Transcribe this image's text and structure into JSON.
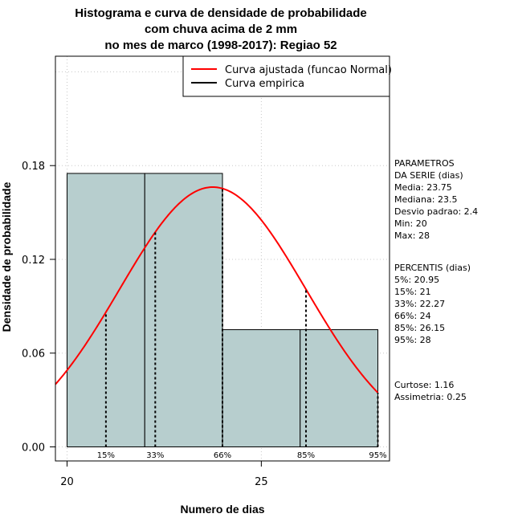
{
  "chart_data": {
    "type": "bar",
    "title_lines": [
      "Histograma e curva de densidade de probabilidade",
      "com chuva acima de 2 mm",
      "no mes de marco (1998-2017): Regiao 52"
    ],
    "xlabel": "Numero de dias",
    "ylabel": "Densidade de probabilidade",
    "xlim": [
      19.7,
      28.3
    ],
    "ylim": [
      -0.009,
      0.25
    ],
    "x_ticks": [
      20,
      25
    ],
    "y_ticks": [
      0.0,
      0.06,
      0.12,
      0.18
    ],
    "y_tick_labels": [
      "0.00",
      "0.06",
      "0.12",
      "0.18"
    ],
    "grid_x": [
      20,
      25
    ],
    "grid_y": [
      0.0,
      0.06,
      0.12,
      0.18,
      0.24
    ],
    "histogram": {
      "bins": [
        [
          20,
          22
        ],
        [
          22,
          24
        ],
        [
          24,
          26
        ],
        [
          26,
          28
        ]
      ],
      "values": [
        0.175,
        0.175,
        0.075,
        0.075
      ],
      "fill": "#b7cece",
      "stroke": "#000000"
    },
    "normal_fit": {
      "mean": 23.75,
      "sd": 2.4,
      "color": "#ff0000"
    },
    "percentiles": [
      {
        "label": "15%",
        "x": 21
      },
      {
        "label": "33%",
        "x": 22.27
      },
      {
        "label": "66%",
        "x": 24
      },
      {
        "label": "85%",
        "x": 26.15
      },
      {
        "label": "95%",
        "x": 28
      }
    ],
    "legend": {
      "placement": "top-right",
      "entries": [
        {
          "name": "Curva ajustada (funcao Normal)",
          "color": "#ff0000"
        },
        {
          "name": "Curva empirica",
          "color": "#000000"
        }
      ]
    }
  },
  "side_panel": {
    "params_lines": [
      "PARAMETROS",
      "DA SERIE (dias)",
      "  Media: 23.75",
      "  Mediana: 23.5",
      "  Desvio padrao: 2.4",
      "  Min: 20",
      "  Max: 28"
    ],
    "percentis_lines": [
      "PERCENTIS (dias)",
      "   5%: 20.95",
      "  15%: 21",
      "  33%: 22.27",
      "  66%: 24",
      "  85%: 26.15",
      "  95%: 28"
    ],
    "stats_lines": [
      "    Curtose: 1.16",
      "Assimetria: 0.25"
    ]
  }
}
